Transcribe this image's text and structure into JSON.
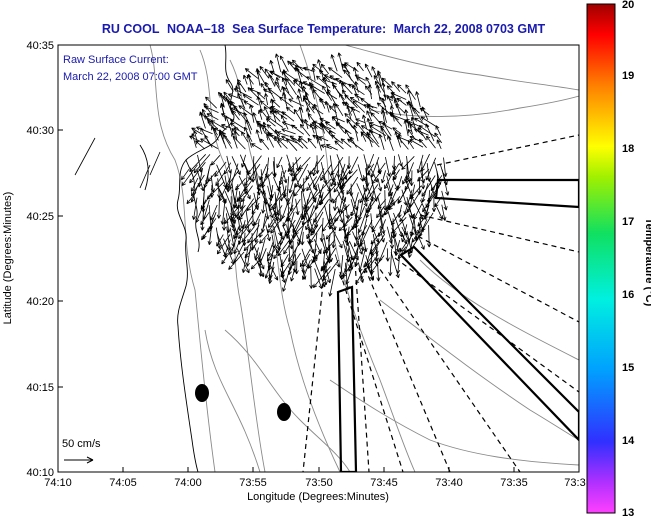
{
  "title": {
    "org": "RU COOL",
    "satellite": "NOAA–18",
    "product": "Sea Surface Temperature:",
    "date": "March 22, 2008 0703 GMT"
  },
  "annotation": {
    "line1": "Raw Surface Current:",
    "line2": "March 22, 2008 07:00 GMT"
  },
  "scale": {
    "label": "50 cm/s",
    "speed_cm_s": 50
  },
  "axes": {
    "xlabel": "Longitude (Degrees:Minutes)",
    "ylabel": "Latitude (Degrees:Minutes)",
    "xticks": [
      "74:10",
      "74:05",
      "74:00",
      "73:55",
      "73:50",
      "73:45",
      "73:40",
      "73:35",
      "73:3"
    ],
    "yticks": [
      "40:35",
      "40:30",
      "40:25",
      "40:20",
      "40:15",
      "40:10"
    ]
  },
  "colorbar": {
    "label": "Temperature (°C)",
    "min": 13,
    "max": 20,
    "ticks": [
      "20",
      "19",
      "18",
      "17",
      "16",
      "15",
      "14",
      "13"
    ]
  },
  "colors": {
    "title": "#1a1ab0",
    "land": "#ffffff",
    "contour": "#888888"
  }
}
